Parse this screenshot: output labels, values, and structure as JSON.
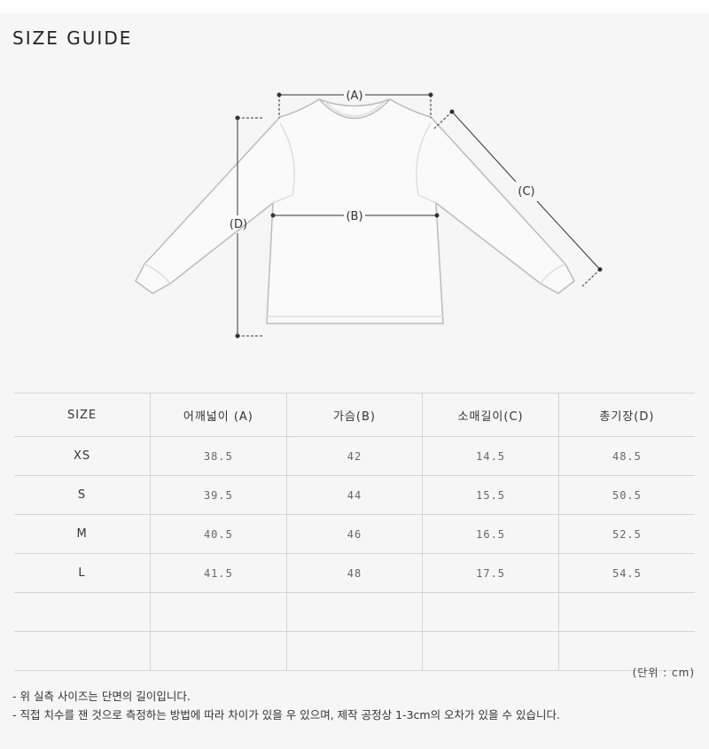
{
  "title": "SIZE GUIDE",
  "diagram": {
    "labels": {
      "a": "(A)",
      "b": "(B)",
      "c": "(C)",
      "d": "(D)"
    }
  },
  "table": {
    "headers": [
      "SIZE",
      "어깨넓이 (A)",
      "가슴(B)",
      "소매길이(C)",
      "총기장(D)"
    ],
    "rows": [
      [
        "XS",
        "38.5",
        "42",
        "14.5",
        "48.5"
      ],
      [
        "S",
        "39.5",
        "44",
        "15.5",
        "50.5"
      ],
      [
        "M",
        "40.5",
        "46",
        "16.5",
        "52.5"
      ],
      [
        "L",
        "41.5",
        "48",
        "17.5",
        "54.5"
      ],
      [
        "",
        "",
        "",
        "",
        ""
      ],
      [
        "",
        "",
        "",
        "",
        ""
      ]
    ]
  },
  "unit": "(단위 : cm)",
  "notes": [
    "- 위 실측 사이즈는 단면의 길이입니다.",
    "- 직접 치수를 잰 것으로 측정하는 방법에 따라 차이가 있을 우 있으며, 제작 공정상 1-3cm의 오차가 있을 수 있습니다."
  ]
}
